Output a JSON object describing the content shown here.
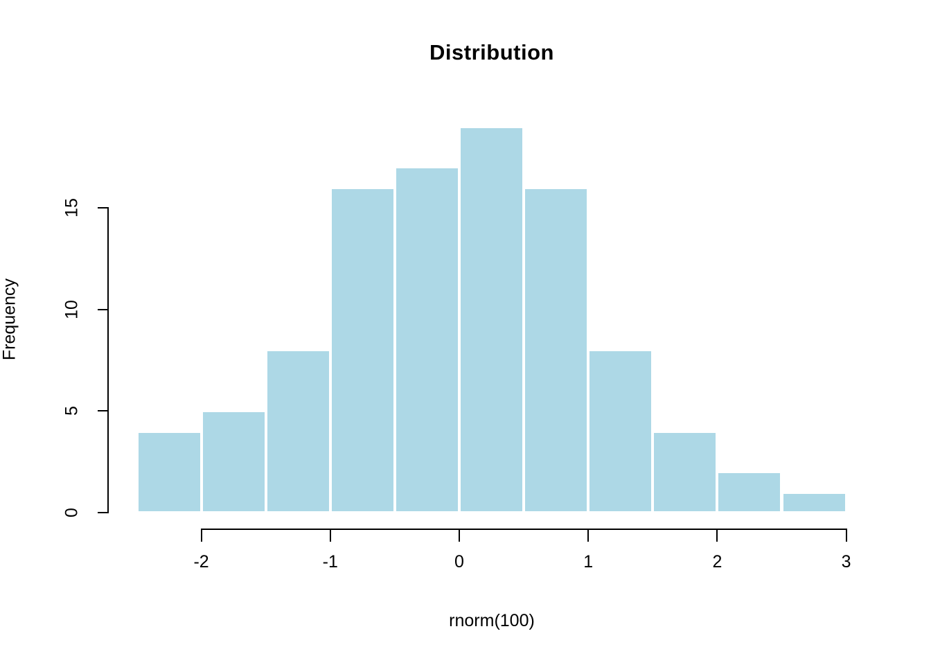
{
  "chart_data": {
    "type": "bar",
    "subtype": "histogram",
    "title": "Distribution",
    "xlabel": "rnorm(100)",
    "ylabel": "Frequency",
    "breaks": [
      -2.5,
      -2,
      -1.5,
      -1,
      -0.5,
      0,
      0.5,
      1,
      1.5,
      2,
      2.5,
      3
    ],
    "counts": [
      4,
      5,
      8,
      16,
      17,
      19,
      16,
      8,
      4,
      2,
      1
    ],
    "x_ticks": [
      {
        "value": -2,
        "label": "-2"
      },
      {
        "value": -1,
        "label": "-1"
      },
      {
        "value": 0,
        "label": "0"
      },
      {
        "value": 1,
        "label": "1"
      },
      {
        "value": 2,
        "label": "2"
      },
      {
        "value": 3,
        "label": "3"
      }
    ],
    "y_ticks": [
      {
        "value": 0,
        "label": "0"
      },
      {
        "value": 5,
        "label": "5"
      },
      {
        "value": 10,
        "label": "10"
      },
      {
        "value": 15,
        "label": "15"
      }
    ],
    "xlim": [
      -2.5,
      3
    ],
    "ylim": [
      0,
      19
    ],
    "grid": "off",
    "legend": "none",
    "colors": {
      "bar_fill": "#ADD8E6",
      "bar_border": "#FFFFFF",
      "axis": "#000000",
      "text": "#000000",
      "background": "#FFFFFF"
    }
  }
}
